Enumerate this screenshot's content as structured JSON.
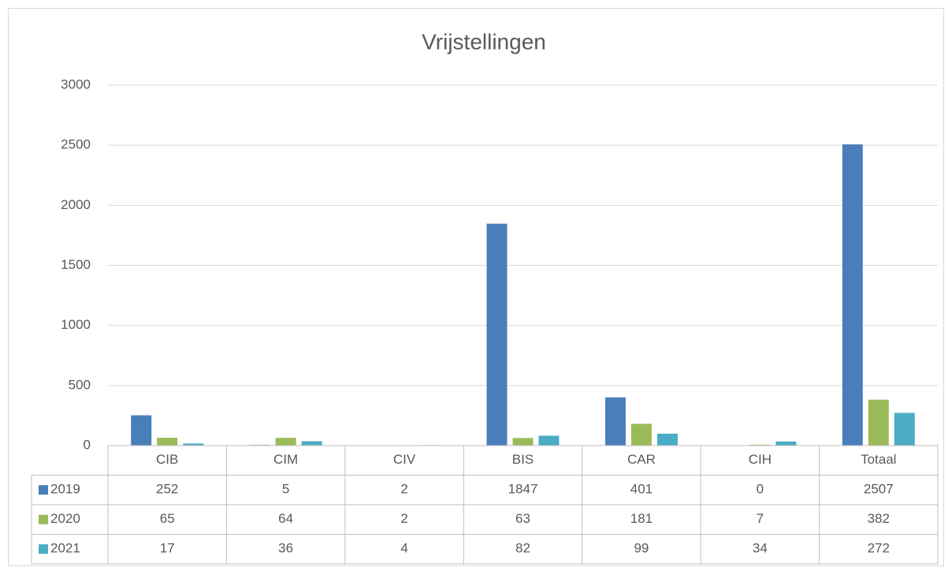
{
  "chart_data": {
    "type": "bar",
    "title": "Vrijstellingen",
    "categories": [
      "CIB",
      "CIM",
      "CIV",
      "BIS",
      "CAR",
      "CIH",
      "Totaal"
    ],
    "series": [
      {
        "name": "2019",
        "color": "#4a7ebb",
        "values": [
          252,
          5,
          2,
          1847,
          401,
          0,
          2507
        ]
      },
      {
        "name": "2020",
        "color": "#9bbb59",
        "values": [
          65,
          64,
          2,
          63,
          181,
          7,
          382
        ]
      },
      {
        "name": "2021",
        "color": "#4bacc6",
        "values": [
          17,
          36,
          4,
          82,
          99,
          34,
          272
        ]
      }
    ],
    "ylim": [
      0,
      3000
    ],
    "yticks": [
      0,
      500,
      1000,
      1500,
      2000,
      2500,
      3000
    ],
    "grid": true,
    "data_table": true
  }
}
